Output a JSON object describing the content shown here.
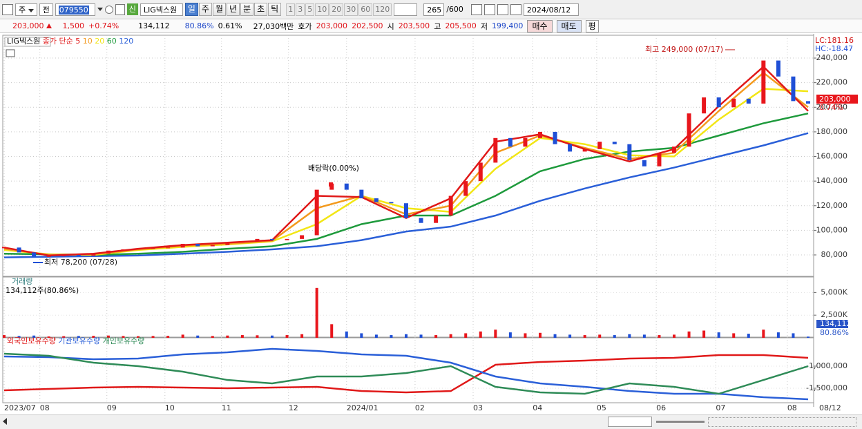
{
  "toolbar": {
    "market": "주",
    "prev": "전",
    "code": "079550",
    "new_badge": "신",
    "name": "LIG넥스원",
    "periods": [
      "일",
      "주",
      "월",
      "년",
      "분",
      "초",
      "틱"
    ],
    "intervals": [
      "1",
      "3",
      "5",
      "10",
      "20",
      "30",
      "60",
      "120"
    ],
    "count": "265",
    "max": "/600",
    "date": "2024/08/12"
  },
  "quote": {
    "price": "203,000",
    "change": "1,500",
    "rate": "+0.74%",
    "volume": "134,112",
    "volume_ratio": "80.86%",
    "turnover": "0.61%",
    "amount": "27,030백만",
    "ask_label": "호가",
    "ask": "203,000",
    "bid": "202,500",
    "open_label": "시",
    "open": "203,500",
    "high_label": "고",
    "high": "205,500",
    "low_label": "저",
    "low": "199,400",
    "buy": "매수",
    "sell": "매도",
    "eval": "평"
  },
  "chart_data": [
    {
      "type": "candlestick",
      "legend_name": "LIG넥스원",
      "legend_prefix": "종가 단순",
      "up_color": "#e8161c",
      "down_color": "#1f4fd6",
      "closes": [
        86000,
        82000,
        78500,
        79000,
        80000,
        79500,
        81000,
        83500,
        84500,
        85000,
        85500,
        86000,
        89000,
        87000,
        88000,
        90000,
        91000,
        93000,
        92000,
        93000,
        96000,
        133000,
        138000,
        133000,
        126000,
        123000,
        122000,
        110000,
        106000,
        112000,
        128000,
        140000,
        155000,
        175000,
        168000,
        175000,
        180000,
        170000,
        164000,
        166000,
        172000,
        170000,
        157000,
        152000,
        163000,
        168000,
        195000,
        208000,
        200000,
        207000,
        203000,
        238000,
        225000,
        205000,
        203000
      ],
      "series": [
        {
          "name": "5",
          "color": "#e01818",
          "x": [
            0,
            3,
            6,
            9,
            12,
            15,
            18,
            21,
            24,
            27,
            30,
            33,
            36,
            39,
            42,
            45,
            48,
            51,
            54
          ],
          "values": [
            86000,
            79500,
            81000,
            85000,
            88000,
            90000,
            92000,
            128000,
            127000,
            110000,
            126000,
            172000,
            178000,
            166000,
            156000,
            166000,
            201000,
            233000,
            197000
          ]
        },
        {
          "name": "10",
          "color": "#f39a1e",
          "x": [
            0,
            3,
            6,
            9,
            12,
            15,
            18,
            21,
            24,
            27,
            30,
            33,
            36,
            39,
            42,
            45,
            48,
            51,
            54
          ],
          "values": [
            85000,
            80000,
            80500,
            84500,
            87500,
            89000,
            91500,
            118000,
            128000,
            113000,
            120000,
            163000,
            177000,
            167000,
            158000,
            163000,
            197000,
            228000,
            200000
          ]
        },
        {
          "name": "20",
          "color": "#f2e615",
          "x": [
            0,
            3,
            6,
            9,
            12,
            15,
            18,
            21,
            24,
            27,
            30,
            33,
            36,
            39,
            42,
            45,
            48,
            51,
            54
          ],
          "values": [
            84000,
            80500,
            80000,
            84000,
            86500,
            88500,
            91000,
            105000,
            128000,
            118000,
            115000,
            150000,
            175000,
            170000,
            161000,
            160000,
            190000,
            215000,
            213000
          ]
        },
        {
          "name": "60",
          "color": "#1e9a3c",
          "x": [
            0,
            3,
            6,
            9,
            12,
            15,
            18,
            21,
            24,
            27,
            30,
            33,
            36,
            39,
            42,
            45,
            48,
            51,
            54
          ],
          "values": [
            81000,
            80500,
            80000,
            81000,
            82500,
            85000,
            87000,
            93000,
            105000,
            112000,
            112000,
            128000,
            148000,
            158000,
            164000,
            167000,
            177000,
            187000,
            195000
          ]
        },
        {
          "name": "120",
          "color": "#2a5fd8",
          "x": [
            0,
            3,
            6,
            9,
            12,
            15,
            18,
            21,
            24,
            27,
            30,
            33,
            36,
            39,
            42,
            45,
            48,
            51,
            54
          ],
          "values": [
            78000,
            78500,
            79000,
            79500,
            81000,
            82500,
            84500,
            87000,
            92000,
            99000,
            103000,
            112000,
            124000,
            134000,
            143000,
            151000,
            160000,
            169000,
            179000
          ]
        }
      ],
      "xlim": [
        0,
        54
      ],
      "ylim": [
        62600,
        256300
      ],
      "yticks": [
        {
          "value": 80000,
          "label": "80,000"
        },
        {
          "value": 100000,
          "label": "100,000"
        },
        {
          "value": 120000,
          "label": "120,000"
        },
        {
          "value": 140000,
          "label": "140,000"
        },
        {
          "value": 160000,
          "label": "160,000"
        },
        {
          "value": 180000,
          "label": "180,000"
        },
        {
          "value": 200000,
          "label": "200,000"
        },
        {
          "value": 220000,
          "label": "220,000"
        },
        {
          "value": 240000,
          "label": "240,000"
        }
      ],
      "grid": true,
      "high_note": "최고 249,000 (07/17)",
      "low_note": "최저 78,200 (07/28)",
      "ex_dividend": "배당락(0.00%)",
      "lc": "LC:181.16",
      "hc": "HC:-18.47",
      "last_label": "203,000",
      "last_rate": "0.74%"
    },
    {
      "type": "bar",
      "title": "거래량",
      "subtitle": "134,112주(80.86%)",
      "values": [
        300,
        200,
        250,
        150,
        180,
        200,
        220,
        250,
        200,
        180,
        200,
        220,
        350,
        250,
        200,
        250,
        300,
        280,
        250,
        300,
        400,
        5500,
        1500,
        700,
        500,
        350,
        300,
        400,
        350,
        300,
        400,
        500,
        700,
        900,
        600,
        500,
        550,
        400,
        350,
        300,
        350,
        300,
        400,
        350,
        300,
        350,
        700,
        800,
        600,
        500,
        450,
        900,
        600,
        500,
        134
      ],
      "xlim": [
        0,
        54
      ],
      "ylim": [
        0,
        6400
      ],
      "yticks": [
        {
          "value": 2500,
          "label": "2,500K"
        },
        {
          "value": 5000,
          "label": "5,000K"
        }
      ],
      "last_label": "134,112",
      "last_ratio": "80.86%"
    },
    {
      "type": "line",
      "series": [
        {
          "name": "외국인보유수량",
          "color": "#e01818",
          "x": [
            0,
            3,
            6,
            9,
            12,
            15,
            18,
            21,
            24,
            27,
            30,
            33,
            36,
            39,
            42,
            45,
            48,
            51,
            54
          ],
          "values": [
            -1547000,
            -1516000,
            -1484000,
            -1469000,
            -1484000,
            -1500000,
            -1484000,
            -1469000,
            -1563000,
            -1594000,
            -1563000,
            -969000,
            -906000,
            -875000,
            -828000,
            -813000,
            -750000,
            -750000,
            -813000
          ]
        },
        {
          "name": "기관보유수량",
          "color": "#2a5fd8",
          "x": [
            0,
            3,
            6,
            9,
            12,
            15,
            18,
            21,
            24,
            27,
            30,
            33,
            36,
            39,
            42,
            45,
            48,
            51,
            54
          ],
          "values": [
            -781000,
            -797000,
            -844000,
            -828000,
            -734000,
            -688000,
            -609000,
            -656000,
            -734000,
            -766000,
            -922000,
            -1234000,
            -1391000,
            -1469000,
            -1563000,
            -1625000,
            -1625000,
            -1703000,
            -1750000
          ]
        },
        {
          "name": "개인보유수량",
          "color": "#2e8b57",
          "x": [
            0,
            3,
            6,
            9,
            12,
            15,
            18,
            21,
            24,
            27,
            30,
            33,
            36,
            39,
            42,
            45,
            48,
            51,
            54
          ],
          "values": [
            -719000,
            -766000,
            -922000,
            -1000000,
            -1125000,
            -1313000,
            -1391000,
            -1234000,
            -1234000,
            -1156000,
            -1000000,
            -1469000,
            -1594000,
            -1625000,
            -1391000,
            -1469000,
            -1625000,
            -1313000,
            -1000000
          ]
        }
      ],
      "xlim": [
        0,
        54
      ],
      "ylim": [
        -1828000,
        -406000
      ],
      "yticks": [
        {
          "value": -1500000,
          "label": "-1,500,000"
        },
        {
          "value": -1000000,
          "label": "-1,000,000"
        }
      ],
      "xticks": [
        {
          "value": 0,
          "label": "2023/07"
        },
        {
          "value": 2.4,
          "label": "08"
        },
        {
          "value": 6.9,
          "label": "09"
        },
        {
          "value": 10.8,
          "label": "10"
        },
        {
          "value": 14.6,
          "label": "11"
        },
        {
          "value": 19.1,
          "label": "12"
        },
        {
          "value": 23.0,
          "label": "2024/01"
        },
        {
          "value": 27.6,
          "label": "02"
        },
        {
          "value": 31.5,
          "label": "03"
        },
        {
          "value": 35.5,
          "label": "04"
        },
        {
          "value": 39.8,
          "label": "05"
        },
        {
          "value": 43.8,
          "label": "06"
        },
        {
          "value": 47.8,
          "label": "07"
        },
        {
          "value": 52.6,
          "label": "08"
        }
      ],
      "end_label": "08/12"
    }
  ]
}
